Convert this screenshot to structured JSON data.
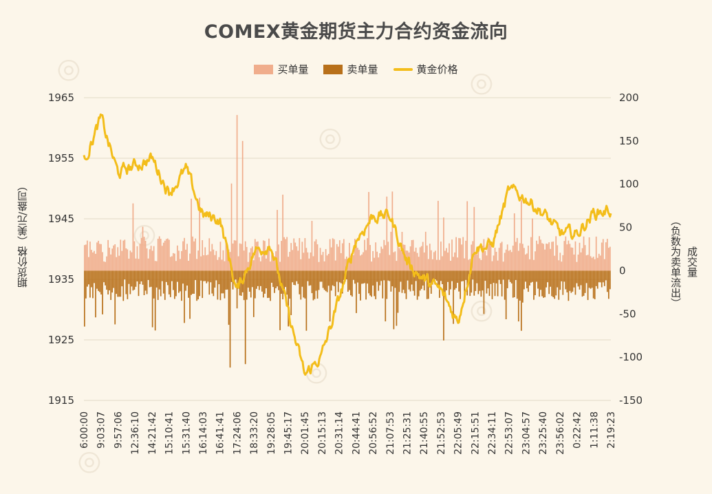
{
  "chart_data": {
    "type": "bar+line",
    "title": "COMEX黄金期货主力合约资金流向",
    "legend": [
      "买单量",
      "卖单量",
      "黄金价格"
    ],
    "legend_position": "top-center",
    "ylabel_left": "期货价格（美元/盎司）",
    "ylabel_right_line1": "成交量",
    "ylabel_right_line2": "（负数为卖单流出）",
    "left_axis": {
      "ticks": [
        1965,
        1955,
        1945,
        1935,
        1925,
        1915
      ],
      "ylim": [
        1915,
        1965
      ]
    },
    "right_axis": {
      "ticks": [
        200,
        150,
        100,
        50,
        0,
        -50,
        -100,
        -150
      ],
      "ylim": [
        -150,
        200
      ]
    },
    "x_tick_labels": [
      "6:00:00",
      "9:03:07",
      "9:57:06",
      "12:36:10",
      "14:21:42",
      "15:10:41",
      "15:31:40",
      "16:14:03",
      "16:41:41",
      "17:24:06",
      "18:33:20",
      "19:28:05",
      "19:45:17",
      "20:01:45",
      "20:15:13",
      "20:31:14",
      "20:44:41",
      "20:56:52",
      "21:07:53",
      "21:25:31",
      "21:40:55",
      "21:52:53",
      "22:05:49",
      "22:15:51",
      "22:34:11",
      "22:53:07",
      "23:04:57",
      "23:25:40",
      "23:56:02",
      "0:22:42",
      "1:11:38",
      "2:19:23"
    ],
    "grid": true,
    "colors": {
      "buy": "#f0ad8c",
      "sell": "#b8701a",
      "price": "#f3bd1a"
    },
    "price_series": {
      "name": "黄金价格",
      "x": [
        0,
        1,
        2,
        3,
        4,
        5,
        6,
        7,
        8,
        9,
        10,
        11,
        12,
        13,
        14,
        15,
        16,
        17,
        18,
        19,
        20,
        21,
        22,
        23,
        24,
        25,
        26,
        27,
        28,
        29,
        30,
        31
      ],
      "values": [
        1954.8,
        1961.5,
        1952.5,
        1953.8,
        1955.0,
        1949.5,
        1953.0,
        1945.5,
        1945.0,
        1933.0,
        1939.5,
        1941.0,
        1929.5,
        1919.0,
        1922.5,
        1931.5,
        1941.5,
        1945.5,
        1945.5,
        1938.0,
        1935.0,
        1933.0,
        1928.0,
        1940.5,
        1940.5,
        1949.5,
        1948.5,
        1946.0,
        1942.5,
        1942.5,
        1946.0,
        1946.5
      ]
    },
    "buy_volume": {
      "name": "买单量",
      "typical_range": [
        10,
        40
      ],
      "peaks": [
        {
          "x": 9,
          "value": 180
        },
        {
          "x": 9.3,
          "value": 150
        }
      ]
    },
    "sell_volume": {
      "name": "卖单量",
      "typical_range": [
        -35,
        -10
      ],
      "troughs": [
        {
          "x": 8.6,
          "value": -112
        },
        {
          "x": 9.5,
          "value": -108
        }
      ]
    }
  }
}
